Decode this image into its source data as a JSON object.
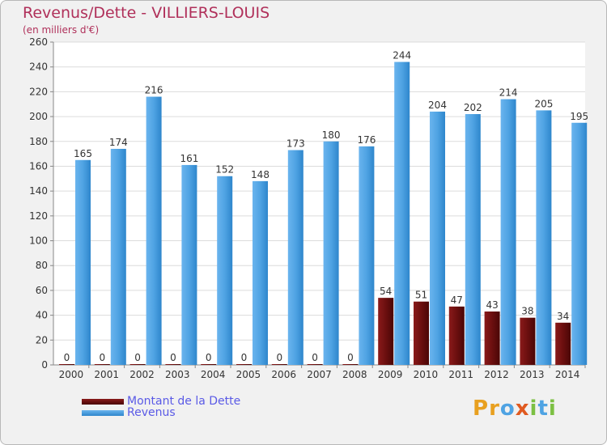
{
  "chart_data": {
    "type": "bar",
    "title": "Revenus/Dette - VILLIERS-LOUIS",
    "subtitle": "(en milliers d'€)",
    "categories": [
      "2000",
      "2001",
      "2002",
      "2003",
      "2004",
      "2005",
      "2006",
      "2007",
      "2008",
      "2009",
      "2010",
      "2011",
      "2012",
      "2013",
      "2014"
    ],
    "series": [
      {
        "name": "Montant de la Dette",
        "color": "#6b0f0f",
        "values": [
          0,
          0,
          0,
          0,
          0,
          0,
          0,
          0,
          0,
          54,
          51,
          47,
          43,
          38,
          34
        ]
      },
      {
        "name": "Revenus",
        "color": "#4fa3e3",
        "values": [
          165,
          174,
          216,
          161,
          152,
          148,
          173,
          180,
          176,
          244,
          204,
          202,
          214,
          205,
          195
        ]
      }
    ],
    "ylim": [
      0,
      260
    ],
    "yticks": [
      0,
      20,
      40,
      60,
      80,
      100,
      120,
      140,
      160,
      180,
      200,
      220,
      240,
      260
    ],
    "grid": true,
    "legend": "bottom-left"
  },
  "branding": {
    "logo_text": "Proxiti"
  }
}
